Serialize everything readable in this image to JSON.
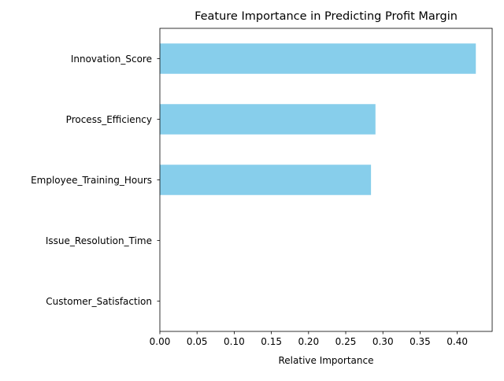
{
  "chart_data": {
    "type": "bar",
    "orientation": "horizontal",
    "title": "Feature Importance in Predicting Profit Margin",
    "xlabel": "Relative Importance",
    "ylabel": "",
    "categories": [
      "Innovation_Score",
      "Process_Efficiency",
      "Employee_Training_Hours",
      "Issue_Resolution_Time",
      "Customer_Satisfaction"
    ],
    "values": [
      0.425,
      0.29,
      0.284,
      0.0,
      0.0
    ],
    "xlim": [
      0,
      0.447
    ],
    "xticks": [
      "0.00",
      "0.05",
      "0.10",
      "0.15",
      "0.20",
      "0.25",
      "0.30",
      "0.35",
      "0.40"
    ],
    "bar_color": "#87ceeb",
    "grid": false,
    "legend": "none"
  }
}
